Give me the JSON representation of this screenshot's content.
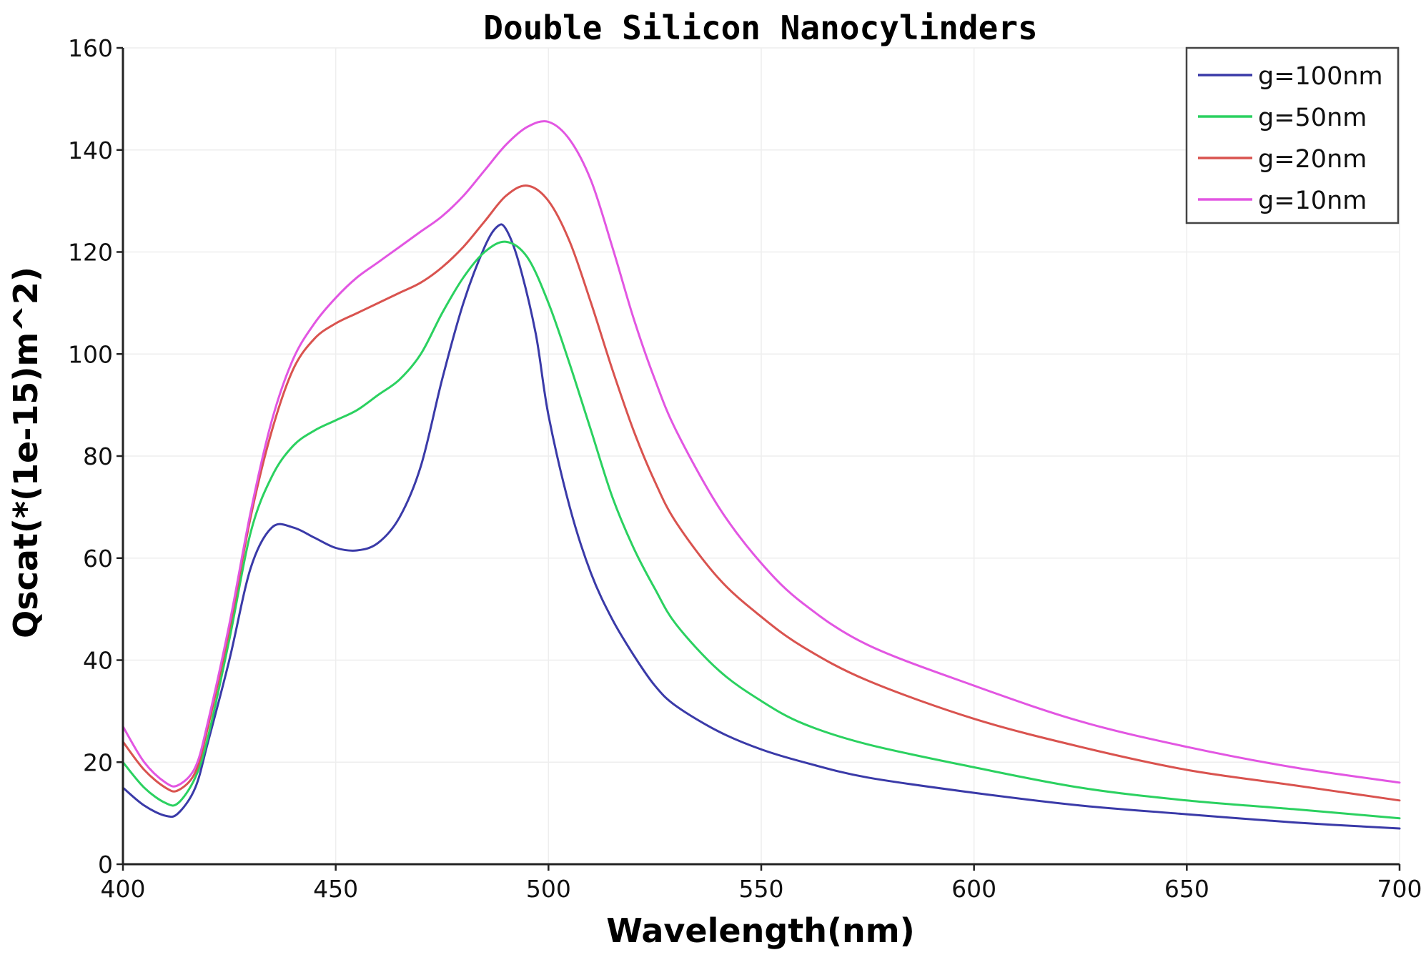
{
  "chart_data": {
    "type": "line",
    "title": "Double Silicon Nanocylinders",
    "xlabel": "Wavelength(nm)",
    "ylabel": "Qscat(*(1e-15)m^2)",
    "xlim": [
      400,
      700
    ],
    "ylim": [
      0,
      160
    ],
    "xticks": [
      400,
      450,
      500,
      550,
      600,
      650,
      700
    ],
    "yticks": [
      0,
      20,
      40,
      60,
      80,
      100,
      120,
      140,
      160
    ],
    "grid": true,
    "legend_position": "top-right",
    "series": [
      {
        "name": "g=100nm",
        "color": "#3a3aa8",
        "points": [
          [
            400,
            15
          ],
          [
            405,
            11.5
          ],
          [
            410,
            9.5
          ],
          [
            413,
            10
          ],
          [
            417,
            15
          ],
          [
            420,
            24
          ],
          [
            425,
            40
          ],
          [
            430,
            58
          ],
          [
            435,
            66
          ],
          [
            440,
            66
          ],
          [
            445,
            64
          ],
          [
            450,
            62
          ],
          [
            455,
            61.5
          ],
          [
            460,
            63
          ],
          [
            465,
            68
          ],
          [
            470,
            78
          ],
          [
            475,
            95
          ],
          [
            480,
            110
          ],
          [
            485,
            121
          ],
          [
            488,
            125
          ],
          [
            490,
            124.5
          ],
          [
            493,
            118
          ],
          [
            497,
            104
          ],
          [
            500,
            88
          ],
          [
            505,
            70
          ],
          [
            510,
            57
          ],
          [
            515,
            48
          ],
          [
            520,
            41
          ],
          [
            525,
            35
          ],
          [
            530,
            31
          ],
          [
            540,
            26
          ],
          [
            550,
            22.5
          ],
          [
            560,
            20
          ],
          [
            575,
            17
          ],
          [
            600,
            14
          ],
          [
            625,
            11.5
          ],
          [
            650,
            9.8
          ],
          [
            675,
            8.2
          ],
          [
            700,
            7
          ]
        ]
      },
      {
        "name": "g=50nm",
        "color": "#2bd160",
        "points": [
          [
            400,
            20
          ],
          [
            405,
            15
          ],
          [
            410,
            12
          ],
          [
            413,
            12
          ],
          [
            417,
            17
          ],
          [
            420,
            25
          ],
          [
            425,
            44
          ],
          [
            430,
            65
          ],
          [
            435,
            76
          ],
          [
            440,
            82
          ],
          [
            445,
            85
          ],
          [
            450,
            87
          ],
          [
            455,
            89
          ],
          [
            460,
            92
          ],
          [
            465,
            95
          ],
          [
            470,
            100
          ],
          [
            475,
            108
          ],
          [
            480,
            115
          ],
          [
            485,
            120
          ],
          [
            490,
            122
          ],
          [
            495,
            119
          ],
          [
            500,
            110
          ],
          [
            505,
            98
          ],
          [
            510,
            85
          ],
          [
            515,
            72
          ],
          [
            520,
            62
          ],
          [
            525,
            54
          ],
          [
            530,
            47
          ],
          [
            540,
            38
          ],
          [
            550,
            32
          ],
          [
            560,
            27.5
          ],
          [
            575,
            23.5
          ],
          [
            600,
            19
          ],
          [
            625,
            15
          ],
          [
            650,
            12.5
          ],
          [
            675,
            10.8
          ],
          [
            700,
            9
          ]
        ]
      },
      {
        "name": "g=20nm",
        "color": "#d9534f",
        "points": [
          [
            400,
            24
          ],
          [
            405,
            18.5
          ],
          [
            410,
            15
          ],
          [
            413,
            14.5
          ],
          [
            417,
            18
          ],
          [
            420,
            27
          ],
          [
            425,
            46
          ],
          [
            430,
            68
          ],
          [
            435,
            85
          ],
          [
            440,
            97
          ],
          [
            445,
            103
          ],
          [
            450,
            106
          ],
          [
            455,
            108
          ],
          [
            460,
            110
          ],
          [
            465,
            112
          ],
          [
            470,
            114
          ],
          [
            475,
            117
          ],
          [
            480,
            121
          ],
          [
            485,
            126
          ],
          [
            490,
            131
          ],
          [
            495,
            133
          ],
          [
            500,
            130
          ],
          [
            505,
            122
          ],
          [
            510,
            110
          ],
          [
            515,
            97
          ],
          [
            520,
            85
          ],
          [
            525,
            75
          ],
          [
            530,
            67
          ],
          [
            540,
            56
          ],
          [
            550,
            48.5
          ],
          [
            560,
            42.5
          ],
          [
            575,
            36
          ],
          [
            600,
            28.5
          ],
          [
            625,
            23
          ],
          [
            650,
            18.5
          ],
          [
            675,
            15.5
          ],
          [
            700,
            12.5
          ]
        ]
      },
      {
        "name": "g=10nm",
        "color": "#e256e2",
        "points": [
          [
            400,
            27
          ],
          [
            405,
            20
          ],
          [
            410,
            16
          ],
          [
            413,
            15.5
          ],
          [
            417,
            19
          ],
          [
            420,
            28
          ],
          [
            425,
            47
          ],
          [
            430,
            69
          ],
          [
            435,
            87
          ],
          [
            440,
            99
          ],
          [
            445,
            106
          ],
          [
            450,
            111
          ],
          [
            455,
            115
          ],
          [
            460,
            118
          ],
          [
            465,
            121
          ],
          [
            470,
            124
          ],
          [
            475,
            127
          ],
          [
            480,
            131
          ],
          [
            485,
            136
          ],
          [
            490,
            141
          ],
          [
            495,
            144.5
          ],
          [
            500,
            145.5
          ],
          [
            505,
            142
          ],
          [
            510,
            134
          ],
          [
            515,
            121
          ],
          [
            520,
            107
          ],
          [
            525,
            95
          ],
          [
            530,
            85
          ],
          [
            540,
            70
          ],
          [
            550,
            59
          ],
          [
            560,
            51
          ],
          [
            575,
            43
          ],
          [
            600,
            35
          ],
          [
            625,
            28
          ],
          [
            650,
            23
          ],
          [
            675,
            19
          ],
          [
            700,
            16
          ]
        ]
      }
    ]
  }
}
